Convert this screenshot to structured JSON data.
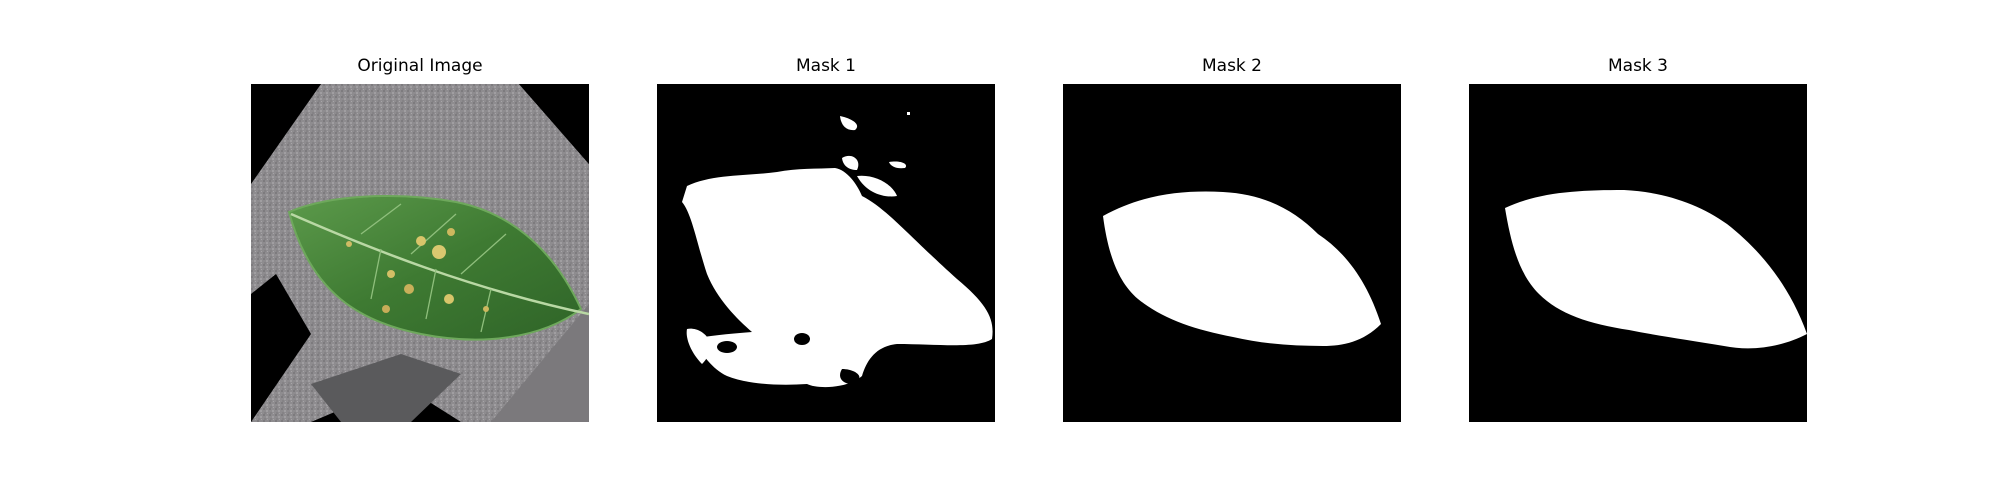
{
  "figure": {
    "panels": [
      {
        "title": "Original Image",
        "image": "photo-of-green-apple-leaf-with-yellow-lesions-on-gray-background"
      },
      {
        "title": "Mask 1",
        "image": "binary-mask-white-leaf-region-noisy"
      },
      {
        "title": "Mask 2",
        "image": "binary-mask-white-leaf-region-clean"
      },
      {
        "title": "Mask 3",
        "image": "binary-mask-white-leaf-region-clean"
      }
    ],
    "colors": {
      "mask_background": "#000000",
      "mask_foreground": "#ffffff",
      "leaf_green": "#3f7d34",
      "lesion_yellow": "#d8c56a",
      "background_gray": "#8d8b8d"
    }
  }
}
